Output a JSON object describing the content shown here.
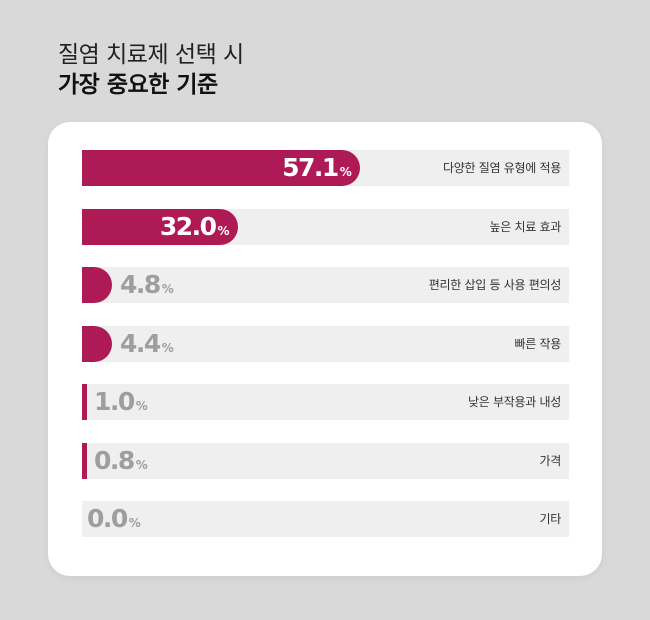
{
  "title": {
    "line1": "질염 치료제 선택 시",
    "line2": "가장 중요한 기준"
  },
  "colors": {
    "bar": "#ad1a55",
    "track": "#efefef",
    "value_inside": "#ffffff",
    "value_outside": "#9e9e9e"
  },
  "chart_data": {
    "type": "bar",
    "orientation": "horizontal",
    "unit": "%",
    "categories": [
      "다양한 질염 유형에 적용",
      "높은 치료 효과",
      "편리한 삽입 등 사용 편의성",
      "빠른 작용",
      "낮은 부작용과 내성",
      "가격",
      "기타"
    ],
    "values": [
      57.1,
      32.0,
      4.8,
      4.4,
      1.0,
      0.8,
      0.0
    ],
    "display_values": [
      "57.1",
      "32.0",
      "4.8",
      "4.4",
      "1.0",
      "0.8",
      "0.0"
    ],
    "xlim": [
      0,
      100
    ],
    "grid": false,
    "legend": false
  }
}
